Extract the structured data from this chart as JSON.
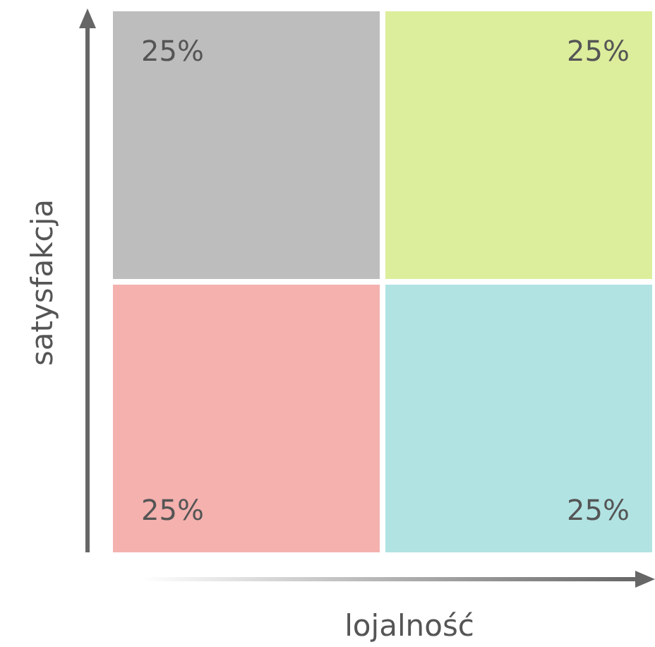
{
  "chart_data": {
    "type": "other",
    "xlabel": "lojalność",
    "ylabel": "satysfakcja",
    "categories": [
      null,
      null,
      null,
      null
    ],
    "values": [
      25,
      25,
      25,
      25
    ],
    "value_labels": [
      "25%",
      "25%",
      "25%",
      "25%"
    ],
    "colors": [
      "#bdbdbd",
      "#dcee9c",
      "#f4b1ae",
      "#b2e3e3"
    ]
  }
}
